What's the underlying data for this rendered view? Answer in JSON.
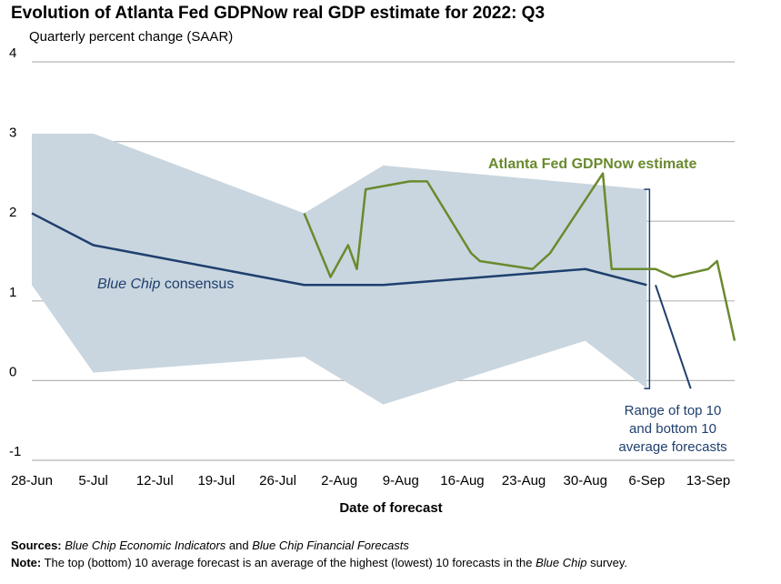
{
  "chart_data": {
    "type": "line",
    "title": "Evolution of Atlanta Fed GDPNow real GDP estimate for 2022: Q3",
    "subtitle": "Quarterly percent change (SAAR)",
    "xlabel": "Date of forecast",
    "ylabel": "",
    "ylim": [
      -1,
      4
    ],
    "yticks": [
      "4",
      "3",
      "2",
      "1",
      "0",
      "-1"
    ],
    "grid": true,
    "xrange": [
      "2022-06-28",
      "2022-09-16"
    ],
    "xtick_labels": [
      {
        "date": "2022-06-28",
        "label": "28-Jun"
      },
      {
        "date": "2022-07-05",
        "label": "5-Jul"
      },
      {
        "date": "2022-07-12",
        "label": "12-Jul"
      },
      {
        "date": "2022-07-19",
        "label": "19-Jul"
      },
      {
        "date": "2022-07-26",
        "label": "26-Jul"
      },
      {
        "date": "2022-08-02",
        "label": "2-Aug"
      },
      {
        "date": "2022-08-09",
        "label": "9-Aug"
      },
      {
        "date": "2022-08-16",
        "label": "16-Aug"
      },
      {
        "date": "2022-08-23",
        "label": "23-Aug"
      },
      {
        "date": "2022-08-30",
        "label": "30-Aug"
      },
      {
        "date": "2022-09-06",
        "label": "6-Sep"
      },
      {
        "date": "2022-09-13",
        "label": "13-Sep"
      }
    ],
    "range_band": {
      "name": "Range of top 10 and bottom 10 average forecasts",
      "label_lines": [
        "Range of top 10",
        "and bottom 10",
        "average forecasts"
      ],
      "color": "#c9d6df",
      "upper": [
        {
          "x": "2022-06-28",
          "y": 3.1
        },
        {
          "x": "2022-07-05",
          "y": 3.1
        },
        {
          "x": "2022-07-29",
          "y": 2.1
        },
        {
          "x": "2022-08-07",
          "y": 2.7
        },
        {
          "x": "2022-09-06",
          "y": 2.4
        }
      ],
      "lower": [
        {
          "x": "2022-06-28",
          "y": 1.2
        },
        {
          "x": "2022-07-05",
          "y": 0.1
        },
        {
          "x": "2022-07-29",
          "y": 0.3
        },
        {
          "x": "2022-08-07",
          "y": -0.3
        },
        {
          "x": "2022-08-30",
          "y": 0.5
        },
        {
          "x": "2022-09-06",
          "y": -0.1
        }
      ]
    },
    "series": [
      {
        "name": "Blue Chip consensus",
        "label_parts": [
          "Blue Chip",
          " consensus"
        ],
        "color": "#1f3f6e",
        "points": [
          {
            "x": "2022-06-28",
            "y": 2.1
          },
          {
            "x": "2022-07-05",
            "y": 1.7
          },
          {
            "x": "2022-07-29",
            "y": 1.2
          },
          {
            "x": "2022-08-07",
            "y": 1.2
          },
          {
            "x": "2022-08-30",
            "y": 1.4
          },
          {
            "x": "2022-09-06",
            "y": 1.2
          }
        ],
        "extension": {
          "from": {
            "x": "2022-09-07",
            "y": 1.2
          },
          "to": {
            "x": "2022-09-11",
            "y": -0.1
          }
        }
      },
      {
        "name": "Atlanta Fed GDPNow estimate",
        "color": "#6a8a2e",
        "points": [
          {
            "x": "2022-07-29",
            "y": 2.1
          },
          {
            "x": "2022-08-01",
            "y": 1.3
          },
          {
            "x": "2022-08-03",
            "y": 1.7
          },
          {
            "x": "2022-08-04",
            "y": 1.4
          },
          {
            "x": "2022-08-05",
            "y": 2.4
          },
          {
            "x": "2022-08-10",
            "y": 2.5
          },
          {
            "x": "2022-08-12",
            "y": 2.5
          },
          {
            "x": "2022-08-17",
            "y": 1.6
          },
          {
            "x": "2022-08-18",
            "y": 1.5
          },
          {
            "x": "2022-08-24",
            "y": 1.4
          },
          {
            "x": "2022-08-26",
            "y": 1.6
          },
          {
            "x": "2022-09-01",
            "y": 2.6
          },
          {
            "x": "2022-09-02",
            "y": 1.4
          },
          {
            "x": "2022-09-07",
            "y": 1.4
          },
          {
            "x": "2022-09-09",
            "y": 1.3
          },
          {
            "x": "2022-09-13",
            "y": 1.4
          },
          {
            "x": "2022-09-14",
            "y": 1.5
          },
          {
            "x": "2022-09-16",
            "y": 0.5
          }
        ]
      }
    ]
  },
  "footer": {
    "sources_label": "Sources:",
    "sources_text": [
      " ",
      "Blue Chip Economic Indicators",
      " and ",
      "Blue Chip Financial Forecasts"
    ],
    "note_label": "Note:",
    "note_text": [
      " The top (bottom) 10 average forecast is an average of the highest (lowest) 10 forecasts in the ",
      "Blue Chip",
      " survey."
    ]
  }
}
